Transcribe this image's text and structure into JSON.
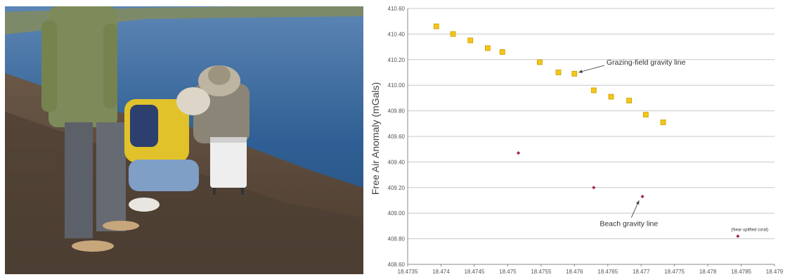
{
  "chart_data": {
    "type": "scatter",
    "xlabel": "",
    "ylabel": "Free Air Anomaly (mGals)",
    "xlim": [
      18.4735,
      18.479
    ],
    "ylim": [
      408.6,
      410.6
    ],
    "x_ticks": [
      "18.4735",
      "18.474",
      "18.4745",
      "18.475",
      "18.4755",
      "18.476",
      "18.4765",
      "18.477",
      "18.4775",
      "18.478",
      "18.4785",
      "18.479"
    ],
    "y_ticks": [
      "408.60",
      "408.80",
      "409.00",
      "409.20",
      "409.40",
      "409.60",
      "409.80",
      "410.00",
      "410.20",
      "410.40",
      "410.60"
    ],
    "grid": "horizontal",
    "series": [
      {
        "marker": "square",
        "color": "#F5C518",
        "edge_color": "#C8A000",
        "x": [
          18.47393,
          18.47418,
          18.47444,
          18.4747,
          18.47492,
          18.47548,
          18.47576,
          18.476,
          18.47629,
          18.47655,
          18.47682,
          18.47707,
          18.47733
        ],
        "y": [
          410.46,
          410.4,
          410.35,
          410.29,
          410.26,
          410.18,
          410.1,
          410.09,
          409.96,
          409.91,
          409.88,
          409.77,
          409.71
        ]
      },
      {
        "marker": "diamond",
        "color": "#9E2A4E",
        "x": [
          18.47516,
          18.47629,
          18.47702,
          18.47845
        ],
        "y": [
          409.47,
          409.2,
          409.13,
          408.82
        ]
      }
    ],
    "annotations": [
      {
        "text": "Grazing-field gravity line",
        "x": 18.47648,
        "y": 410.16,
        "arrow_to": [
          18.47606,
          410.1
        ]
      },
      {
        "text": "Beach gravity line",
        "x": 18.47638,
        "y": 408.9,
        "arrow_to": [
          18.47697,
          409.1
        ]
      },
      {
        "text": "(Near uplifted coral)",
        "x": 18.47835,
        "y": 408.86
      }
    ]
  },
  "photo": {
    "sky_water": "#3f6ea6",
    "ground": "#5b4a3c"
  }
}
